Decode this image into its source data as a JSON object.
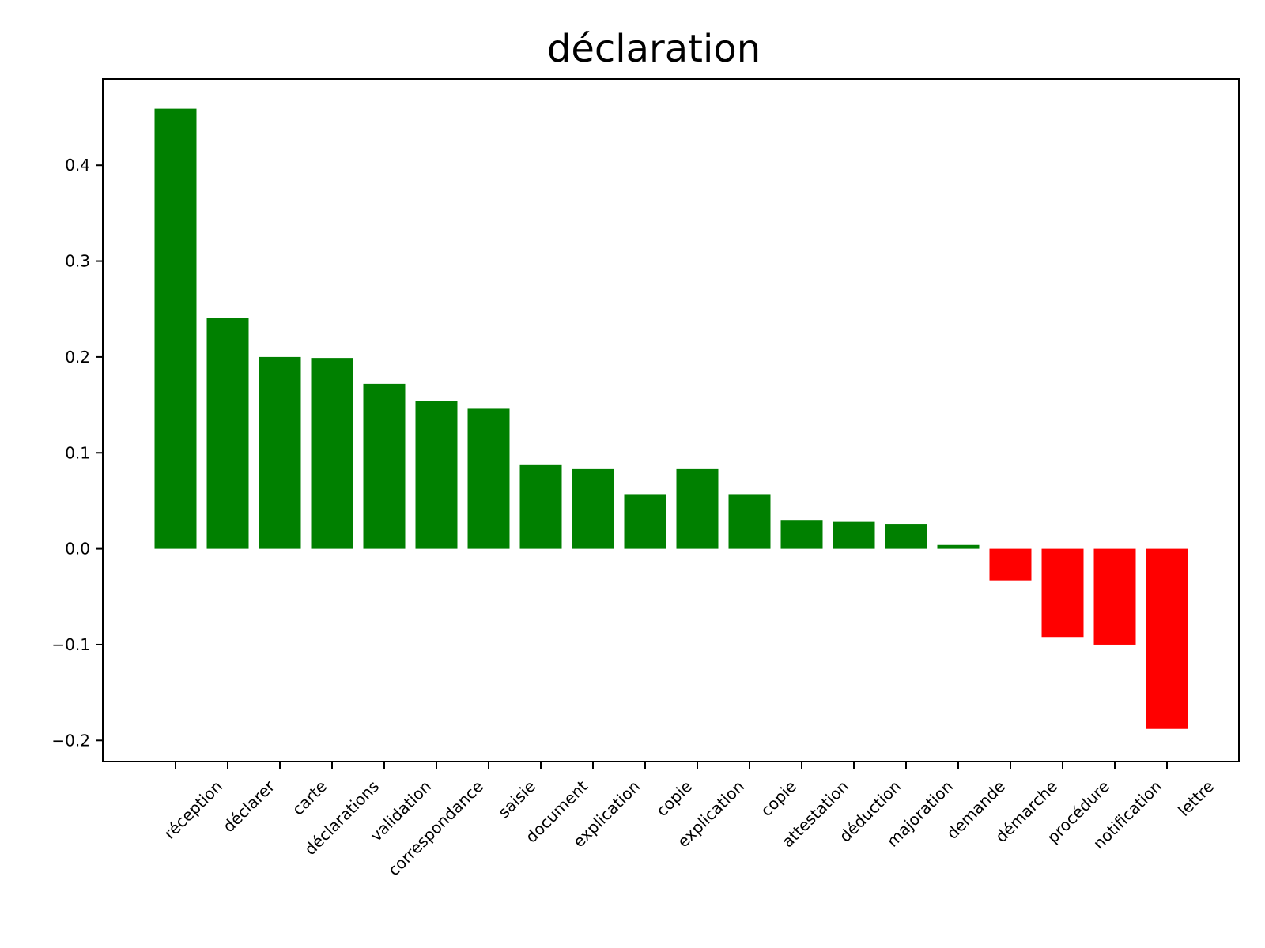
{
  "chart_data": {
    "type": "bar",
    "title": "déclaration",
    "xlabel": "",
    "ylabel": "",
    "categories": [
      "réception",
      "déclarer",
      "carte",
      "déclarations",
      "validation",
      "correspondance",
      "saisie",
      "document",
      "explication",
      "copie",
      "explication",
      "copie",
      "attestation",
      "déduction",
      "majoration",
      "demande",
      "démarche",
      "procédure",
      "notification",
      "lettre"
    ],
    "values": [
      0.459,
      0.241,
      0.2,
      0.199,
      0.172,
      0.154,
      0.146,
      0.088,
      0.083,
      0.057,
      0.083,
      0.057,
      0.03,
      0.028,
      0.026,
      0.004,
      -0.033,
      -0.092,
      -0.1,
      -0.188
    ],
    "ylim": [
      -0.222,
      0.49
    ],
    "yticks": [
      -0.2,
      -0.1,
      0.0,
      0.1,
      0.2,
      0.3,
      0.4
    ],
    "ytick_labels": [
      "−0.2",
      "−0.1",
      "0.0",
      "0.1",
      "0.2",
      "0.3",
      "0.4"
    ],
    "positive_color": "#008000",
    "negative_color": "#ff0000",
    "grid": false,
    "legend": "none"
  }
}
